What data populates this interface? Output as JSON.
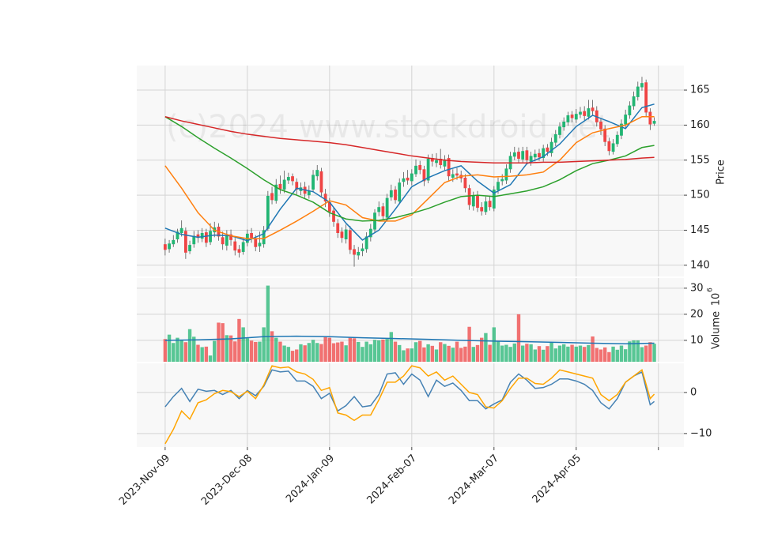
{
  "chart_data": {
    "type": "candlestick",
    "watermark": "(c)2024 www.stockdroid.net",
    "ylabel": "Price",
    "grid": true,
    "up_color": "#22b573",
    "down_color": "#ef4444",
    "xlim": [
      -6.9,
      126.2
    ],
    "xticks": [
      {
        "value": 0,
        "label": "2023-Nov-09"
      },
      {
        "value": 20,
        "label": "2023-Dec-08"
      },
      {
        "value": 40,
        "label": "2024-Jan-09"
      },
      {
        "value": 60,
        "label": "2024-Feb-07"
      },
      {
        "value": 80,
        "label": "2024-Mar-07"
      },
      {
        "value": 100,
        "label": "2024-Apr-05"
      },
      {
        "value": 120,
        "label": null
      }
    ],
    "ylim": [
      138.4,
      168.5
    ],
    "yticks": [
      140,
      145,
      150,
      155,
      160,
      165
    ],
    "open": [
      143.0,
      142.3,
      143.0,
      143.7,
      144.6,
      144.9,
      142.0,
      143.0,
      144.4,
      143.8,
      144.7,
      143.3,
      144.7,
      145.5,
      144.0,
      142.8,
      144.4,
      143.4,
      142.3,
      141.9,
      143.2,
      144.6,
      143.8,
      142.7,
      143.0,
      145.2,
      150.3,
      149.2,
      151.6,
      150.8,
      152.1,
      152.7,
      151.9,
      150.6,
      151.2,
      150.0,
      150.8,
      152.7,
      153.4,
      150.2,
      149.0,
      147.8,
      146.0,
      144.8,
      143.7,
      145.0,
      142.3,
      141.4,
      142.0,
      142.3,
      144.0,
      145.1,
      147.6,
      148.4,
      146.8,
      149.7,
      150.8,
      149.1,
      151.9,
      152.5,
      152.0,
      153.0,
      154.3,
      153.7,
      152.1,
      155.3,
      154.6,
      155.2,
      154.1,
      155.3,
      152.5,
      153.1,
      152.9,
      152.5,
      151.0,
      148.4,
      150.0,
      148.3,
      147.6,
      149.2,
      148.1,
      150.7,
      152.0,
      152.1,
      153.7,
      155.5,
      156.2,
      155.1,
      156.4,
      154.8,
      155.4,
      156.0,
      155.3,
      156.8,
      156.0,
      157.5,
      158.6,
      159.7,
      160.4,
      161.5,
      160.8,
      161.5,
      162.0,
      161.2,
      162.5,
      162.1,
      160.5,
      159.5,
      157.7,
      156.2,
      157.3,
      158.5,
      160.1,
      161.4,
      162.7,
      164.0,
      165.4,
      166.1,
      161.9,
      160.2
    ],
    "high": [
      143.8,
      143.6,
      144.3,
      145.2,
      146.4,
      145.4,
      143.5,
      144.9,
      145.0,
      145.3,
      145.2,
      146.0,
      146.2,
      146.0,
      144.8,
      145.0,
      145.1,
      143.9,
      142.9,
      143.8,
      145.1,
      145.3,
      144.3,
      144.8,
      145.6,
      150.6,
      151.2,
      152.3,
      152.8,
      153.5,
      153.2,
      153.1,
      152.4,
      151.8,
      151.9,
      151.4,
      153.6,
      154.3,
      153.9,
      150.9,
      149.6,
      148.3,
      146.6,
      145.4,
      145.8,
      145.6,
      142.9,
      142.6,
      143.1,
      144.7,
      145.9,
      148.0,
      149.1,
      148.9,
      150.2,
      151.5,
      151.3,
      152.4,
      153.3,
      153.6,
      153.7,
      155.1,
      154.9,
      154.2,
      155.8,
      155.9,
      156.0,
      156.6,
      155.7,
      155.8,
      153.7,
      153.9,
      153.5,
      153.0,
      151.5,
      150.5,
      150.6,
      149.0,
      149.8,
      149.9,
      151.3,
      152.5,
      153.0,
      154.4,
      156.2,
      156.9,
      156.8,
      156.9,
      156.9,
      156.2,
      156.5,
      156.6,
      157.2,
      157.3,
      158.2,
      159.3,
      160.4,
      161.1,
      161.9,
      162.0,
      162.3,
      162.6,
      162.7,
      163.6,
      163.6,
      162.7,
      161.0,
      160.0,
      158.2,
      158.0,
      159.1,
      160.8,
      162.2,
      163.4,
      164.8,
      166.2,
      166.9,
      166.5,
      162.4,
      161.1
    ],
    "low": [
      141.4,
      141.8,
      142.6,
      143.2,
      144.1,
      140.9,
      141.6,
      142.5,
      143.2,
      143.3,
      142.6,
      142.9,
      144.0,
      143.5,
      142.2,
      142.1,
      142.8,
      141.4,
      141.1,
      141.5,
      142.7,
      143.2,
      142.0,
      141.9,
      142.5,
      144.9,
      148.7,
      148.8,
      150.2,
      150.3,
      151.6,
      151.4,
      150.1,
      150.0,
      149.6,
      149.5,
      150.4,
      152.1,
      149.8,
      148.3,
      146.9,
      145.5,
      143.9,
      143.2,
      143.1,
      141.6,
      139.8,
      140.8,
      141.3,
      141.8,
      143.4,
      144.7,
      147.0,
      146.4,
      146.3,
      149.2,
      148.8,
      148.7,
      151.2,
      151.5,
      151.4,
      152.6,
      153.0,
      151.3,
      151.7,
      154.1,
      154.0,
      153.8,
      153.6,
      152.1,
      151.9,
      152.2,
      151.8,
      150.4,
      147.9,
      147.8,
      147.6,
      147.1,
      147.2,
      147.8,
      147.7,
      150.2,
      151.4,
      151.6,
      153.2,
      155.0,
      154.6,
      154.7,
      154.4,
      154.2,
      154.8,
      154.9,
      154.8,
      155.6,
      155.5,
      157.0,
      158.1,
      159.2,
      159.9,
      160.4,
      160.3,
      161.0,
      160.7,
      160.8,
      161.4,
      159.8,
      158.6,
      157.0,
      155.7,
      155.8,
      156.9,
      158.0,
      159.6,
      160.9,
      162.2,
      163.5,
      164.9,
      161.2,
      159.3,
      159.9
    ],
    "close": [
      142.2,
      143.1,
      143.6,
      144.8,
      145.3,
      141.8,
      142.9,
      144.2,
      143.9,
      144.6,
      143.2,
      144.9,
      145.4,
      144.1,
      143.0,
      144.3,
      143.6,
      142.1,
      141.8,
      143.3,
      144.5,
      143.9,
      142.6,
      143.2,
      145.0,
      149.9,
      149.3,
      151.5,
      150.9,
      152.2,
      152.6,
      152.0,
      150.8,
      151.1,
      150.2,
      150.6,
      152.9,
      153.6,
      150.4,
      149.1,
      147.6,
      146.2,
      144.6,
      143.9,
      145.1,
      142.2,
      141.5,
      141.9,
      142.4,
      144.1,
      145.2,
      147.5,
      148.3,
      147.0,
      149.6,
      150.7,
      149.3,
      151.8,
      152.4,
      152.1,
      153.1,
      154.2,
      153.6,
      152.0,
      155.2,
      154.8,
      155.0,
      154.3,
      155.1,
      152.7,
      153.0,
      152.8,
      152.4,
      151.0,
      148.6,
      149.9,
      148.2,
      147.7,
      149.1,
      148.3,
      150.8,
      151.9,
      152.3,
      153.8,
      155.6,
      156.1,
      155.2,
      156.3,
      155.0,
      155.6,
      155.9,
      155.4,
      156.7,
      156.2,
      157.6,
      158.7,
      159.8,
      160.5,
      161.4,
      161.0,
      161.6,
      161.9,
      161.3,
      162.4,
      162.0,
      160.4,
      159.4,
      157.6,
      156.3,
      157.4,
      158.6,
      160.2,
      161.5,
      162.8,
      164.1,
      165.5,
      166.0,
      161.8,
      160.1,
      160.6
    ],
    "overlays": [
      {
        "color": "#1f77b4",
        "x": [
          0,
          4,
          8,
          12,
          16,
          20,
          24,
          28,
          32,
          36,
          40,
          44,
          48,
          52,
          56,
          60,
          64,
          68,
          72,
          76,
          80,
          84,
          88,
          92,
          96,
          100,
          104,
          108,
          112,
          116,
          119
        ],
        "values": [
          145.3,
          144.4,
          144.0,
          144.3,
          144.2,
          143.5,
          144.5,
          148.0,
          151.0,
          150.5,
          149.0,
          146.0,
          143.6,
          145.0,
          148.0,
          151.2,
          152.5,
          153.5,
          154.2,
          152.0,
          150.3,
          151.5,
          154.5,
          155.5,
          157.3,
          159.8,
          161.4,
          160.5,
          159.5,
          162.5,
          163.0
        ]
      },
      {
        "color": "#ff7f0e",
        "x": [
          0,
          4,
          8,
          12,
          16,
          20,
          24,
          28,
          32,
          36,
          40,
          44,
          48,
          52,
          56,
          60,
          64,
          68,
          72,
          76,
          80,
          84,
          88,
          92,
          96,
          100,
          104,
          108,
          112,
          116,
          119
        ],
        "values": [
          154.2,
          151.0,
          147.5,
          145.0,
          144.2,
          143.8,
          143.8,
          145.0,
          146.3,
          147.7,
          149.2,
          148.6,
          146.8,
          146.3,
          146.3,
          147.2,
          149.5,
          151.8,
          152.7,
          152.9,
          152.6,
          152.7,
          152.9,
          153.3,
          155.0,
          157.5,
          158.9,
          159.5,
          160.0,
          161.2,
          161.2
        ]
      },
      {
        "color": "#2ca02c",
        "x": [
          0,
          4,
          8,
          12,
          16,
          20,
          24,
          28,
          32,
          36,
          40,
          44,
          48,
          52,
          56,
          60,
          64,
          68,
          72,
          76,
          80,
          84,
          88,
          92,
          96,
          100,
          104,
          108,
          112,
          116,
          119
        ],
        "values": [
          161.2,
          159.8,
          158.2,
          156.7,
          155.3,
          153.8,
          152.2,
          150.8,
          150.0,
          149.0,
          147.5,
          146.6,
          146.3,
          146.4,
          146.8,
          147.4,
          148.1,
          149.0,
          149.8,
          150.0,
          149.8,
          150.2,
          150.6,
          151.2,
          152.2,
          153.5,
          154.5,
          155.0,
          155.6,
          156.8,
          157.1
        ]
      },
      {
        "color": "#d62728",
        "x": [
          0,
          4,
          8,
          12,
          16,
          20,
          24,
          28,
          32,
          36,
          40,
          44,
          48,
          52,
          56,
          60,
          64,
          68,
          72,
          76,
          80,
          84,
          88,
          92,
          96,
          100,
          104,
          108,
          112,
          116,
          119
        ],
        "values": [
          161.2,
          160.6,
          160.1,
          159.6,
          159.1,
          158.7,
          158.4,
          158.1,
          157.9,
          157.7,
          157.5,
          157.2,
          156.8,
          156.4,
          156.0,
          155.6,
          155.3,
          155.0,
          154.8,
          154.7,
          154.6,
          154.6,
          154.6,
          154.7,
          154.7,
          154.8,
          154.9,
          155.0,
          155.1,
          155.3,
          155.4
        ]
      }
    ],
    "volume": {
      "ylabel": "Volume",
      "offset_text": "10",
      "offset_exponent": "6",
      "ylim": [
        1.8,
        33.9
      ],
      "yticks": [
        10,
        20,
        30
      ],
      "values": [
        10.5,
        12.2,
        9.0,
        11.0,
        10.2,
        9.3,
        14.3,
        11.4,
        8.3,
        7.4,
        7.6,
        4.2,
        9.8,
        16.8,
        16.6,
        12.0,
        11.9,
        9.6,
        18.2,
        15.0,
        10.8,
        9.9,
        9.4,
        9.5,
        15.0,
        31.0,
        13.5,
        11.0,
        9.5,
        8.0,
        7.5,
        6.0,
        6.5,
        8.5,
        8.1,
        9.0,
        10.2,
        9.0,
        8.6,
        11.2,
        11.0,
        8.9,
        9.2,
        9.5,
        8.1,
        11.0,
        10.8,
        9.4,
        7.5,
        9.5,
        8.5,
        10.2,
        10.0,
        10.3,
        10.5,
        13.2,
        9.5,
        8.2,
        6.2,
        6.9,
        6.9,
        9.3,
        9.8,
        7.3,
        8.5,
        7.9,
        6.5,
        9.3,
        8.6,
        7.9,
        7.2,
        9.5,
        7.1,
        7.6,
        15.2,
        7.5,
        8.2,
        11.0,
        12.8,
        8.3,
        15.0,
        9.6,
        8.0,
        8.3,
        7.5,
        8.8,
        20.0,
        8.0,
        8.7,
        8.5,
        6.5,
        7.8,
        6.4,
        7.8,
        9.2,
        6.9,
        8.0,
        8.5,
        7.6,
        8.3,
        7.6,
        8.0,
        7.5,
        8.2,
        11.5,
        7.1,
        6.5,
        7.3,
        5.5,
        7.6,
        6.4,
        8.0,
        6.6,
        9.6,
        10.0,
        10.0,
        7.4,
        8.0,
        9.3,
        8.7
      ],
      "ma": {
        "color": "#1f77b4",
        "x": [
          0,
          8,
          16,
          24,
          32,
          40,
          48,
          56,
          64,
          72,
          80,
          88,
          96,
          104,
          112,
          119
        ],
        "values": [
          10.0,
          10.2,
          10.6,
          11.4,
          11.6,
          11.4,
          11.0,
          10.7,
          10.4,
          10.0,
          9.7,
          9.5,
          9.2,
          8.9,
          8.7,
          8.9
        ]
      }
    },
    "oscillator": {
      "ylim": [
        -13.3,
        7.1
      ],
      "yticks": [
        {
          "value": -10,
          "label": "−10"
        },
        0
      ],
      "series": [
        {
          "color": "#4682b4",
          "x": [
            0,
            2,
            4,
            6,
            8,
            10,
            12,
            14,
            16,
            18,
            20,
            22,
            24,
            26,
            28,
            30,
            32,
            34,
            36,
            38,
            40,
            42,
            44,
            46,
            48,
            50,
            52,
            54,
            56,
            58,
            60,
            62,
            64,
            66,
            68,
            70,
            72,
            74,
            76,
            78,
            80,
            82,
            84,
            86,
            88,
            90,
            92,
            94,
            96,
            98,
            100,
            102,
            104,
            106,
            108,
            110,
            112,
            114,
            116,
            118,
            119
          ],
          "values": [
            -3.5,
            -1.0,
            1.0,
            -2.2,
            0.8,
            0.3,
            0.5,
            -0.5,
            0.5,
            -1.5,
            0.5,
            -0.8,
            1.5,
            5.5,
            5.0,
            5.2,
            2.8,
            2.8,
            1.5,
            -1.5,
            -0.2,
            -4.5,
            -3.2,
            -1.0,
            -3.5,
            -3.2,
            -0.5,
            4.5,
            4.8,
            2.0,
            4.5,
            3.0,
            -1.0,
            3.0,
            1.5,
            2.3,
            0.5,
            -2.0,
            -2.0,
            -4.0,
            -2.8,
            -1.8,
            2.5,
            4.5,
            3.0,
            1.0,
            1.2,
            2.0,
            3.3,
            3.3,
            2.8,
            2.0,
            0.5,
            -2.5,
            -4.0,
            -1.5,
            2.5,
            4.0,
            5.0,
            -3.0,
            -2.2
          ]
        },
        {
          "color": "#ffa500",
          "x": [
            0,
            2,
            4,
            6,
            8,
            10,
            12,
            14,
            16,
            18,
            20,
            22,
            24,
            26,
            28,
            30,
            32,
            34,
            36,
            38,
            40,
            42,
            44,
            46,
            48,
            50,
            52,
            54,
            56,
            58,
            60,
            62,
            64,
            66,
            68,
            70,
            72,
            74,
            76,
            78,
            80,
            82,
            84,
            86,
            88,
            90,
            92,
            94,
            96,
            98,
            100,
            102,
            104,
            106,
            108,
            110,
            112,
            114,
            116,
            118,
            119
          ],
          "values": [
            -12.5,
            -9.0,
            -4.5,
            -6.5,
            -2.5,
            -1.8,
            -0.3,
            0.5,
            0.2,
            -1.0,
            0.3,
            -1.5,
            1.8,
            6.5,
            6.0,
            6.2,
            5.0,
            4.5,
            3.2,
            0.5,
            1.2,
            -5.0,
            -5.5,
            -6.8,
            -5.5,
            -5.5,
            -1.8,
            2.5,
            2.5,
            4.0,
            6.5,
            6.0,
            4.0,
            5.0,
            3.0,
            4.0,
            2.0,
            0.0,
            -0.5,
            -3.5,
            -3.8,
            -2.0,
            1.0,
            3.5,
            3.5,
            2.2,
            2.0,
            3.5,
            5.5,
            5.0,
            4.5,
            4.0,
            3.5,
            -0.5,
            -2.0,
            -0.5,
            2.5,
            4.0,
            5.5,
            -1.5,
            -0.4
          ]
        }
      ]
    }
  }
}
